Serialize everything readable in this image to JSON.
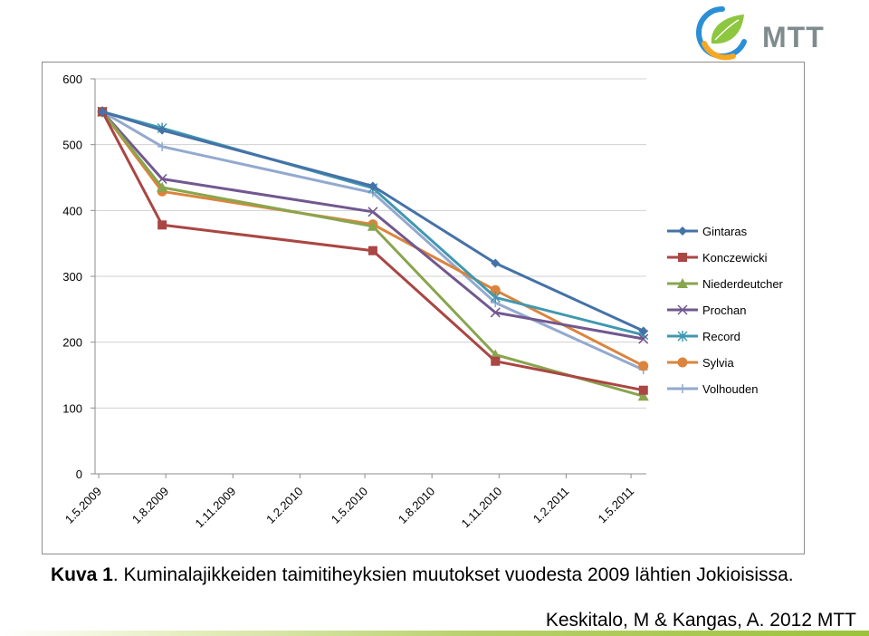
{
  "logo": {
    "text": "MTT",
    "icon": "mtt-leaf-swirl-logo"
  },
  "colors": {
    "grid": "#d0d0d0",
    "axis": "#8c8c8c",
    "frame": "#8c8c8c",
    "logo_text": "#7f8c8d",
    "logo_green": "#8dc63f",
    "logo_blue": "#2b8fd6",
    "logo_orange": "#f7a823"
  },
  "chart_data": {
    "type": "line",
    "title": "",
    "xlabel": "",
    "ylabel": "",
    "x_is_date": true,
    "ylim": [
      0,
      600
    ],
    "yticks": [
      0,
      100,
      200,
      300,
      400,
      500,
      600
    ],
    "xticks": [
      "2009-05-01",
      "2009-08-01",
      "2009-11-01",
      "2010-02-01",
      "2010-05-01",
      "2010-08-01",
      "2010-11-01",
      "2011-02-01",
      "2011-05-01"
    ],
    "xtick_labels": [
      "1.5.2009",
      "1.8.2009",
      "1.11.2009",
      "1.2.2010",
      "1.5.2010",
      "1.8.2010",
      "1.11.2010",
      "1.2.2011",
      "1.5.2011"
    ],
    "xlim": [
      "2009-04-26",
      "2011-05-22"
    ],
    "x": [
      "2009-05-06",
      "2009-07-27",
      "2010-05-12",
      "2010-10-27",
      "2011-05-18"
    ],
    "grid": true,
    "legend_position": "right",
    "series": [
      {
        "name": "Gintaras",
        "color": "#4572A7",
        "marker": "diamond",
        "values": [
          550,
          522,
          437,
          320,
          217
        ]
      },
      {
        "name": "Konczewicki",
        "color": "#AA4643",
        "marker": "square",
        "values": [
          550,
          378,
          339,
          171,
          127
        ]
      },
      {
        "name": "Niederdeutcher",
        "color": "#89A54E",
        "marker": "triangle",
        "values": [
          550,
          435,
          376,
          181,
          118
        ]
      },
      {
        "name": "Prochan",
        "color": "#71588F",
        "marker": "x",
        "values": [
          550,
          448,
          398,
          245,
          205
        ]
      },
      {
        "name": "Record",
        "color": "#4198AF",
        "marker": "star",
        "values": [
          550,
          525,
          434,
          268,
          211
        ]
      },
      {
        "name": "Sylvia",
        "color": "#DB843D",
        "marker": "circle",
        "values": [
          550,
          429,
          379,
          279,
          164
        ]
      },
      {
        "name": "Volhouden",
        "color": "#93A9CF",
        "marker": "plus",
        "values": [
          550,
          497,
          427,
          260,
          158
        ]
      }
    ]
  },
  "caption": {
    "label": "Kuva 1",
    "text": ". Kuminalajikkeiden taimitiheyksien muutokset vuodesta 2009 lähtien Jokioisissa."
  },
  "citation": "Keskitalo, M & Kangas, A. 2012 MTT"
}
